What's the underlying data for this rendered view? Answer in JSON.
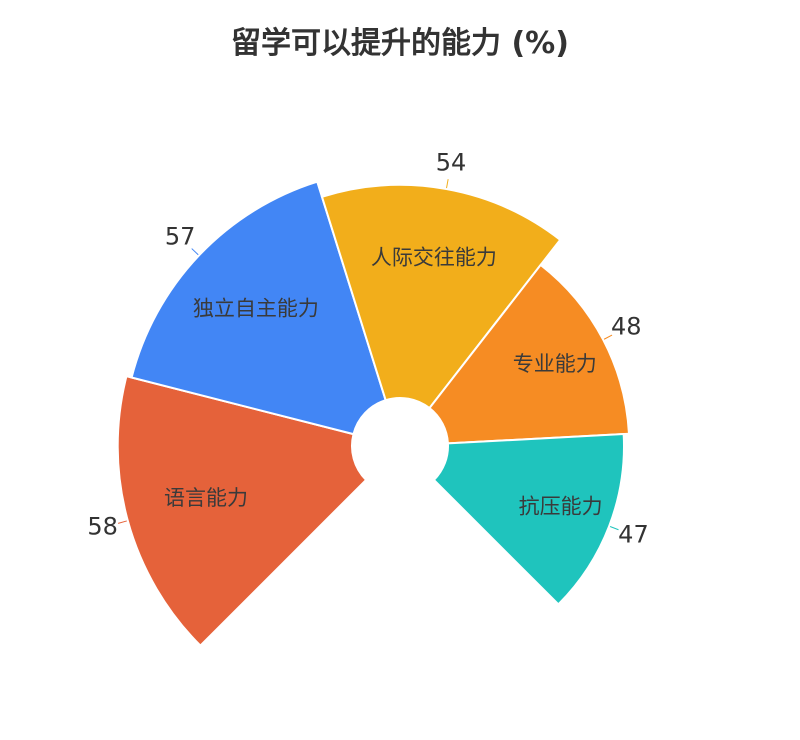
{
  "chart_data": {
    "type": "pie",
    "title": "留学可以提升的能力 (%)",
    "categories": [
      "语言能力",
      "独立自主能力",
      "人际交往能力",
      "专业能力",
      "抗压能力"
    ],
    "values": [
      58,
      57,
      54,
      48,
      47
    ],
    "colors": [
      "#e5623a",
      "#4286f5",
      "#f2ae1b",
      "#f68c23",
      "#1fc4bd"
    ],
    "value_labels": [
      "58",
      "57",
      "54",
      "48",
      "47"
    ]
  }
}
